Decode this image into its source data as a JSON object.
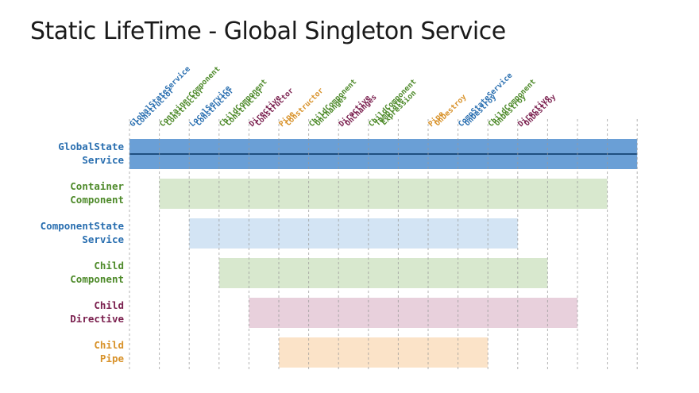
{
  "title": "Static LifeTime - Global Singleton Service",
  "colors": {
    "blue": "#2a6fb0",
    "green": "#4e8a2a",
    "maroon": "#7a1f4e",
    "orange": "#d8922a",
    "grid": "#9a9a9a"
  },
  "events": [
    {
      "lines": [
        "GlobalStateService",
        "Constructor"
      ],
      "color": "blue"
    },
    {
      "lines": [
        "ContainerComponent",
        "Constructor"
      ],
      "color": "green"
    },
    {
      "lines": [
        "LocalService",
        "Constructor"
      ],
      "color": "blue"
    },
    {
      "lines": [
        "ChildComponent",
        "Constructor"
      ],
      "color": "green"
    },
    {
      "lines": [
        "Directive",
        "Constructor"
      ],
      "color": "maroon"
    },
    {
      "lines": [
        "Pipe",
        "Constructor"
      ],
      "color": "orange"
    },
    {
      "lines": [
        "ChildComponent",
        "OnChanges"
      ],
      "color": "green"
    },
    {
      "lines": [
        "Directive",
        "OnChanges"
      ],
      "color": "maroon"
    },
    {
      "lines": [
        "ChildComponent",
        "Template",
        "Expression"
      ],
      "color": "green"
    },
    {
      "lines": [],
      "color": "grid"
    },
    {
      "lines": [
        "Pipe",
        "OnDestroy"
      ],
      "color": "orange"
    },
    {
      "lines": [
        "CompStateService",
        "OnDestroy"
      ],
      "color": "blue"
    },
    {
      "lines": [
        "ChildComponent",
        "OnDestroy"
      ],
      "color": "green"
    },
    {
      "lines": [
        "Directive",
        "OnDestroy"
      ],
      "color": "maroon"
    },
    {
      "lines": [],
      "color": "grid"
    },
    {
      "lines": [],
      "color": "grid"
    },
    {
      "lines": [],
      "color": "grid"
    }
  ],
  "rows": [
    {
      "label": [
        "GlobalState",
        "Service"
      ],
      "color": "blue",
      "start": 0,
      "end": 17,
      "bar_fill": "#6a9fd6",
      "line": true
    },
    {
      "label": [
        "Container",
        "Component"
      ],
      "color": "green",
      "start": 1,
      "end": 16,
      "bar_fill": "#d8e8ce",
      "line": false
    },
    {
      "label": [
        "ComponentState",
        "Service"
      ],
      "color": "blue",
      "start": 2,
      "end": 13,
      "bar_fill": "#d3e4f4",
      "line": false
    },
    {
      "label": [
        "Child",
        "Component"
      ],
      "color": "green",
      "start": 3,
      "end": 14,
      "bar_fill": "#d8e8ce",
      "line": false
    },
    {
      "label": [
        "Child",
        "Directive"
      ],
      "color": "maroon",
      "start": 4,
      "end": 15,
      "bar_fill": "#e8d0dc",
      "line": false
    },
    {
      "label": [
        "Child",
        "Pipe"
      ],
      "color": "orange",
      "start": 5,
      "end": 12,
      "bar_fill": "#fbe3c8",
      "line": false
    }
  ]
}
